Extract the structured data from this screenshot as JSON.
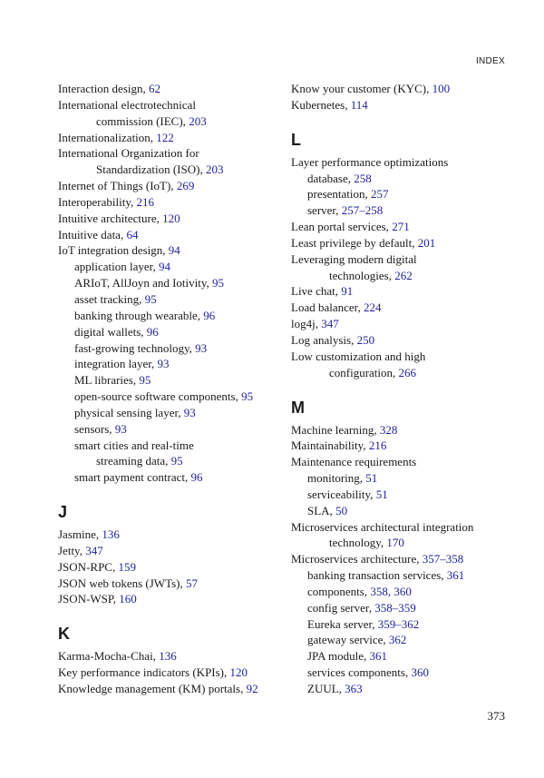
{
  "running_head": "INDEX",
  "page_number": "373",
  "page_link_color": "#1f1f9a",
  "columns": [
    [
      {
        "type": "main",
        "t": "Interaction design, ",
        "p": "62"
      },
      {
        "type": "main",
        "t": "International electrotechnical",
        "p": ""
      },
      {
        "type": "cont",
        "t": "commission (IEC), ",
        "p": "203"
      },
      {
        "type": "main",
        "t": "Internationalization, ",
        "p": "122"
      },
      {
        "type": "main",
        "t": "International Organization for",
        "p": ""
      },
      {
        "type": "cont",
        "t": "Standardization (ISO), ",
        "p": "203"
      },
      {
        "type": "main",
        "t": "Internet of Things (IoT), ",
        "p": "269"
      },
      {
        "type": "main",
        "t": "Interoperability, ",
        "p": "216"
      },
      {
        "type": "main",
        "t": "Intuitive architecture, ",
        "p": "120"
      },
      {
        "type": "main",
        "t": "Intuitive data, ",
        "p": "64"
      },
      {
        "type": "main",
        "t": "IoT integration design, ",
        "p": "94"
      },
      {
        "type": "sub",
        "t": "application layer, ",
        "p": "94"
      },
      {
        "type": "sub",
        "t": "ARIoT, AllJoyn and Iotivity, ",
        "p": "95"
      },
      {
        "type": "sub",
        "t": "asset tracking, ",
        "p": "95"
      },
      {
        "type": "sub",
        "t": "banking through wearable, ",
        "p": "96"
      },
      {
        "type": "sub",
        "t": "digital wallets, ",
        "p": "96"
      },
      {
        "type": "sub",
        "t": "fast-growing technology, ",
        "p": "93"
      },
      {
        "type": "sub",
        "t": "integration layer, ",
        "p": "93"
      },
      {
        "type": "sub",
        "t": "ML libraries, ",
        "p": "95"
      },
      {
        "type": "sub",
        "t": "open-source software components, ",
        "p": "95"
      },
      {
        "type": "sub",
        "t": "physical sensing layer, ",
        "p": "93"
      },
      {
        "type": "sub",
        "t": "sensors, ",
        "p": "93"
      },
      {
        "type": "sub",
        "t": "smart cities and real-time",
        "p": ""
      },
      {
        "type": "cont",
        "t": "streaming data, ",
        "p": "95"
      },
      {
        "type": "sub",
        "t": "smart payment contract, ",
        "p": "96"
      },
      {
        "type": "head",
        "t": "J",
        "p": ""
      },
      {
        "type": "main",
        "t": "Jasmine, ",
        "p": "136"
      },
      {
        "type": "main",
        "t": "Jetty, ",
        "p": "347"
      },
      {
        "type": "main",
        "t": "JSON-RPC, ",
        "p": "159"
      },
      {
        "type": "main",
        "t": "JSON web tokens (JWTs), ",
        "p": "57"
      },
      {
        "type": "main",
        "t": "JSON-WSP, ",
        "p": "160"
      },
      {
        "type": "head",
        "t": "K",
        "p": ""
      },
      {
        "type": "main",
        "t": "Karma-Mocha-Chai, ",
        "p": "136"
      },
      {
        "type": "main",
        "t": "Key performance indicators (KPIs), ",
        "p": "120"
      },
      {
        "type": "main",
        "t": "Knowledge management (KM) portals, ",
        "p": "92"
      }
    ],
    [
      {
        "type": "main",
        "t": "Know your customer (KYC), ",
        "p": "100"
      },
      {
        "type": "main",
        "t": "Kubernetes, ",
        "p": "114"
      },
      {
        "type": "head",
        "t": "L",
        "p": ""
      },
      {
        "type": "main",
        "t": "Layer performance optimizations",
        "p": ""
      },
      {
        "type": "sub",
        "t": "database, ",
        "p": "258"
      },
      {
        "type": "sub",
        "t": "presentation, ",
        "p": "257"
      },
      {
        "type": "sub",
        "t": "server, ",
        "p": "257–258"
      },
      {
        "type": "main",
        "t": "Lean portal services, ",
        "p": "271"
      },
      {
        "type": "main",
        "t": "Least privilege by default, ",
        "p": "201"
      },
      {
        "type": "main",
        "t": "Leveraging modern digital",
        "p": ""
      },
      {
        "type": "cont",
        "t": "technologies, ",
        "p": "262"
      },
      {
        "type": "main",
        "t": "Live chat, ",
        "p": "91"
      },
      {
        "type": "main",
        "t": "Load balancer, ",
        "p": "224"
      },
      {
        "type": "main",
        "t": "log4j, ",
        "p": "347"
      },
      {
        "type": "main",
        "t": "Log analysis, ",
        "p": "250"
      },
      {
        "type": "main",
        "t": "Low customization and high",
        "p": ""
      },
      {
        "type": "cont",
        "t": "configuration, ",
        "p": "266"
      },
      {
        "type": "head",
        "t": "M",
        "p": ""
      },
      {
        "type": "main",
        "t": "Machine learning, ",
        "p": "328"
      },
      {
        "type": "main",
        "t": "Maintainability, ",
        "p": "216"
      },
      {
        "type": "main",
        "t": "Maintenance requirements",
        "p": ""
      },
      {
        "type": "sub",
        "t": "monitoring, ",
        "p": "51"
      },
      {
        "type": "sub",
        "t": "serviceability, ",
        "p": "51"
      },
      {
        "type": "sub",
        "t": "SLA, ",
        "p": "50"
      },
      {
        "type": "main",
        "t": "Microservices architectural integration",
        "p": ""
      },
      {
        "type": "cont",
        "t": "technology, ",
        "p": "170"
      },
      {
        "type": "main",
        "t": "Microservices architecture, ",
        "p": "357–358"
      },
      {
        "type": "sub",
        "t": "banking transaction services, ",
        "p": "361"
      },
      {
        "type": "sub",
        "t": "components, ",
        "p": "358, 360"
      },
      {
        "type": "sub",
        "t": "config server, ",
        "p": "358–359"
      },
      {
        "type": "sub",
        "t": "Eureka server, ",
        "p": "359–362"
      },
      {
        "type": "sub",
        "t": "gateway service, ",
        "p": "362"
      },
      {
        "type": "sub",
        "t": "JPA module, ",
        "p": "361"
      },
      {
        "type": "sub",
        "t": "services components, ",
        "p": "360"
      },
      {
        "type": "sub",
        "t": "ZUUL, ",
        "p": "363"
      }
    ]
  ]
}
